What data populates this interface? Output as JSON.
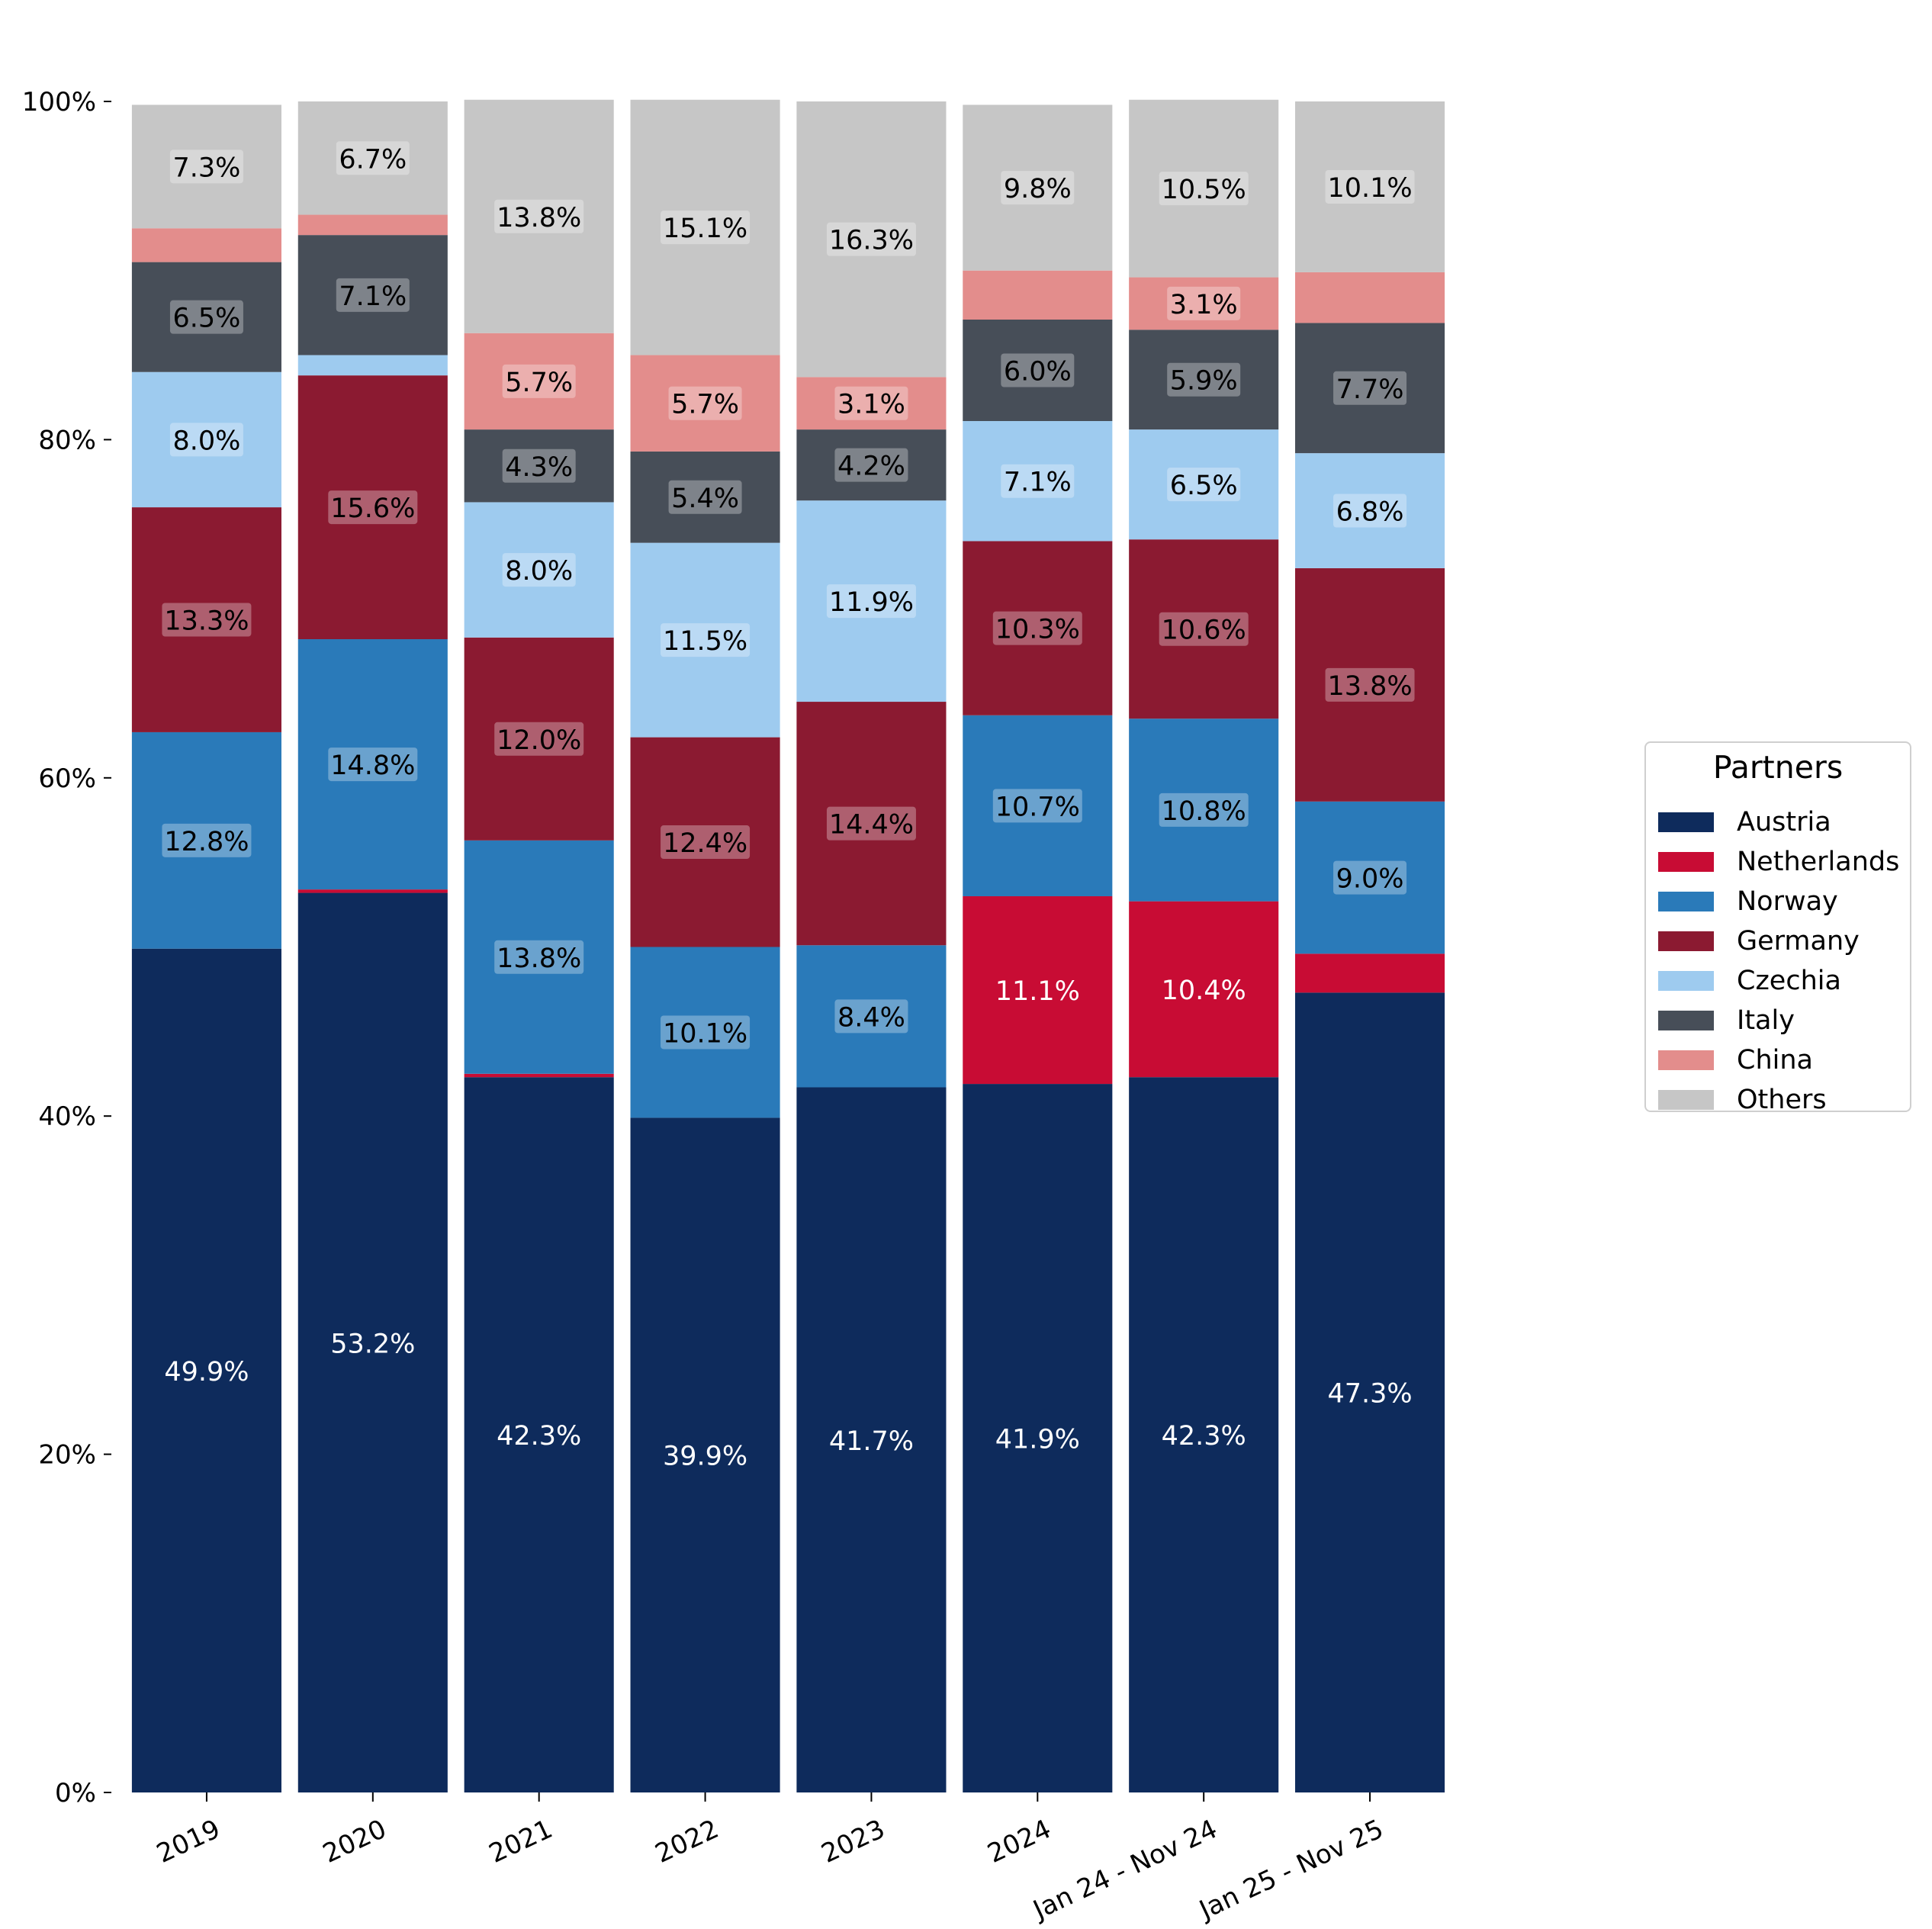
{
  "chart_data": {
    "type": "bar",
    "stacked": true,
    "normalized": true,
    "categories": [
      "2019",
      "2020",
      "2021",
      "2022",
      "2023",
      "2024",
      "Jan 24 - Nov 24",
      "Jan 25 - Nov 25"
    ],
    "xlabel": "",
    "ylabel": "",
    "ylim": [
      0,
      100
    ],
    "yticks": [
      0,
      20,
      40,
      60,
      80,
      100
    ],
    "ytick_labels": [
      "0%",
      "20%",
      "40%",
      "60%",
      "80%",
      "100%"
    ],
    "grid": false,
    "legend": {
      "title": "Partners",
      "placement": "right"
    },
    "series": [
      {
        "name": "Austria",
        "color": "#0e2b5c",
        "label_color": "#ffffff",
        "label_box": false,
        "values": [
          49.9,
          53.2,
          42.3,
          39.9,
          41.7,
          41.9,
          42.3,
          47.3
        ],
        "labels": [
          "49.9%",
          "53.2%",
          "42.3%",
          "39.9%",
          "41.7%",
          "41.9%",
          "42.3%",
          "47.3%"
        ]
      },
      {
        "name": "Netherlands",
        "color": "#c80c34",
        "label_color": "#ffffff",
        "label_box": false,
        "values": [
          0.0,
          0.2,
          0.2,
          0.0,
          0.0,
          11.1,
          10.4,
          2.3
        ],
        "labels": [
          "",
          "",
          "",
          "",
          "",
          "11.1%",
          "10.4%",
          ""
        ]
      },
      {
        "name": "Norway",
        "color": "#2a7ab9",
        "label_color": "#000000",
        "label_box": true,
        "values": [
          12.8,
          14.8,
          13.8,
          10.1,
          8.4,
          10.7,
          10.8,
          9.0
        ],
        "labels": [
          "12.8%",
          "14.8%",
          "13.8%",
          "10.1%",
          "8.4%",
          "10.7%",
          "10.8%",
          "9.0%"
        ]
      },
      {
        "name": "Germany",
        "color": "#8b1a31",
        "label_color": "#000000",
        "label_box": true,
        "values": [
          13.3,
          15.6,
          12.0,
          12.4,
          14.4,
          10.3,
          10.6,
          13.8
        ],
        "labels": [
          "13.3%",
          "15.6%",
          "12.0%",
          "12.4%",
          "14.4%",
          "10.3%",
          "10.6%",
          "13.8%"
        ]
      },
      {
        "name": "Czechia",
        "color": "#9ecbef",
        "label_color": "#000000",
        "label_box": true,
        "values": [
          8.0,
          1.2,
          8.0,
          11.5,
          11.9,
          7.1,
          6.5,
          6.8
        ],
        "labels": [
          "8.0%",
          "",
          "8.0%",
          "11.5%",
          "11.9%",
          "7.1%",
          "6.5%",
          "6.8%"
        ]
      },
      {
        "name": "Italy",
        "color": "#474e58",
        "label_color": "#000000",
        "label_box": true,
        "values": [
          6.5,
          7.1,
          4.3,
          5.4,
          4.2,
          6.0,
          5.9,
          7.7
        ],
        "labels": [
          "6.5%",
          "7.1%",
          "4.3%",
          "5.4%",
          "4.2%",
          "6.0%",
          "5.9%",
          "7.7%"
        ]
      },
      {
        "name": "China",
        "color": "#e38d8c",
        "label_color": "#000000",
        "label_box": true,
        "values": [
          2.0,
          1.2,
          5.7,
          5.7,
          3.1,
          2.9,
          3.1,
          3.0
        ],
        "labels": [
          "",
          "",
          "5.7%",
          "5.7%",
          "3.1%",
          "",
          "3.1%",
          ""
        ]
      },
      {
        "name": "Others",
        "color": "#c6c6c6",
        "label_color": "#000000",
        "label_box": true,
        "values": [
          7.3,
          6.7,
          13.8,
          15.1,
          16.3,
          9.8,
          10.5,
          10.1
        ],
        "labels": [
          "7.3%",
          "6.7%",
          "13.8%",
          "15.1%",
          "16.3%",
          "9.8%",
          "10.5%",
          "10.1%"
        ]
      }
    ]
  }
}
